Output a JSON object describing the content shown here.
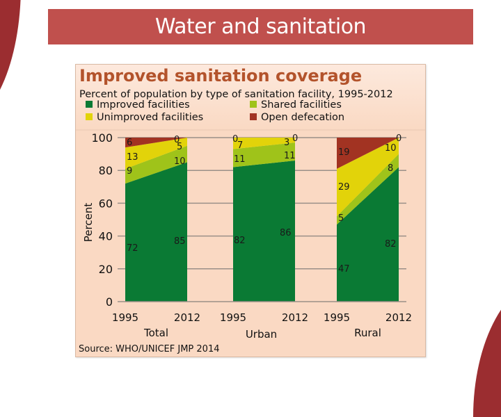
{
  "slide": {
    "title": "Water and sanitation",
    "banner_color": "#c0504d",
    "accent_color": "#9b2d30"
  },
  "chart_data": {
    "type": "area",
    "title": "Improved sanitation coverage",
    "subtitle": "Percent of population by type of sanitation facility, 1995-2012",
    "ylabel": "Percent",
    "ylim": [
      0,
      100
    ],
    "yticks": [
      0,
      20,
      40,
      60,
      80,
      100
    ],
    "grid": true,
    "legend_position": "top",
    "legend": [
      {
        "name": "Improved facilities",
        "color": "#0a7a34"
      },
      {
        "name": "Shared facilities",
        "color": "#9fc31a"
      },
      {
        "name": "Unimproved facilities",
        "color": "#e2d30a"
      },
      {
        "name": "Open defecation",
        "color": "#a23322"
      }
    ],
    "groups": [
      {
        "name": "Total",
        "x": [
          "1995",
          "2012"
        ],
        "series": [
          {
            "name": "Improved facilities",
            "values": [
              72,
              85
            ]
          },
          {
            "name": "Shared facilities",
            "values": [
              9,
              10
            ]
          },
          {
            "name": "Unimproved facilities",
            "values": [
              13,
              5
            ]
          },
          {
            "name": "Open defecation",
            "values": [
              6,
              0
            ]
          }
        ]
      },
      {
        "name": "Urban",
        "x": [
          "1995",
          "2012"
        ],
        "series": [
          {
            "name": "Improved facilities",
            "values": [
              82,
              86
            ]
          },
          {
            "name": "Shared facilities",
            "values": [
              11,
              11
            ]
          },
          {
            "name": "Unimproved facilities",
            "values": [
              7,
              3
            ]
          },
          {
            "name": "Open defecation",
            "values": [
              0,
              0
            ]
          }
        ]
      },
      {
        "name": "Rural",
        "x": [
          "1995",
          "2012"
        ],
        "series": [
          {
            "name": "Improved facilities",
            "values": [
              47,
              82
            ]
          },
          {
            "name": "Shared facilities",
            "values": [
              5,
              8
            ]
          },
          {
            "name": "Unimproved facilities",
            "values": [
              29,
              10
            ]
          },
          {
            "name": "Open defecation",
            "values": [
              19,
              0
            ]
          }
        ]
      }
    ],
    "source": "Source:  WHO/UNICEF JMP 2014",
    "colors": {
      "panel_bg": "#fad9c3",
      "header_bg": "#fde9dd",
      "title_text": "#b3532b",
      "gridline": "#9a8f88"
    }
  }
}
